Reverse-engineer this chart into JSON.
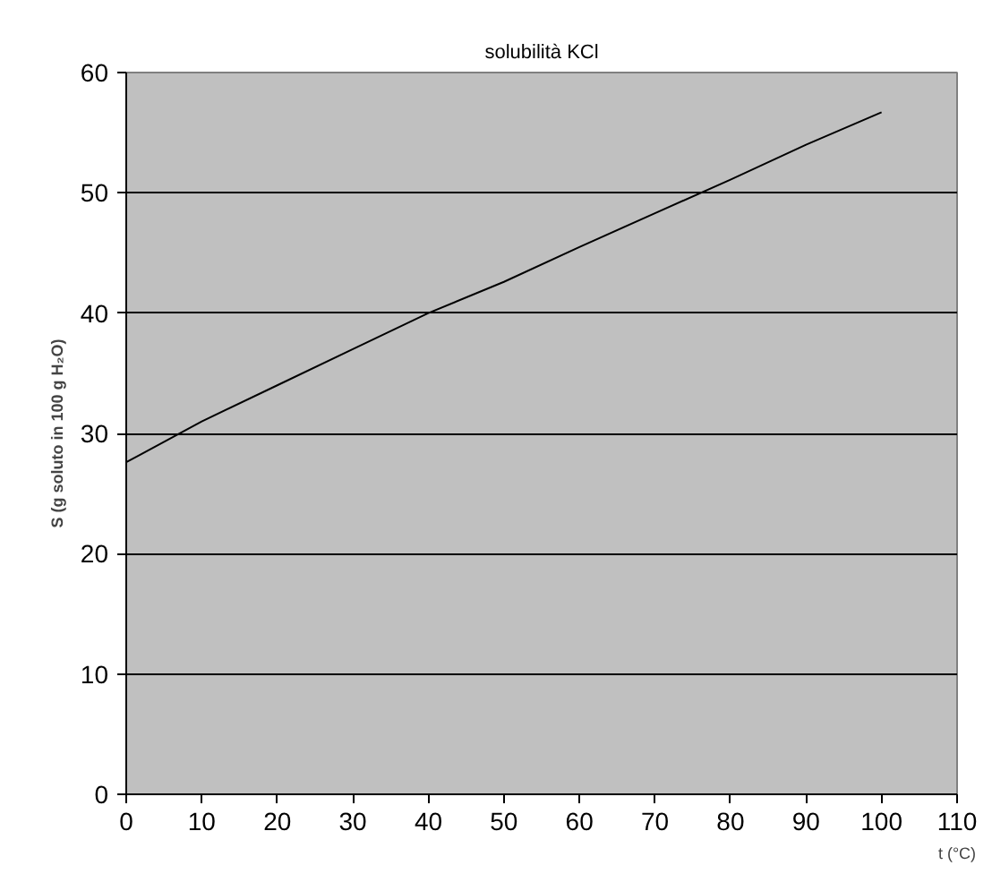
{
  "chart_data": {
    "type": "line",
    "title": "solubilità KCl",
    "xlabel": "t (°C)",
    "ylabel": "S (g soluto in 100 g H₂O)",
    "x": [
      0,
      10,
      20,
      30,
      40,
      50,
      60,
      70,
      80,
      90,
      100
    ],
    "series": [
      {
        "color": "#000000",
        "values": [
          27.6,
          31,
          34,
          37,
          40,
          42.6,
          45.5,
          48.3,
          51.1,
          54,
          56.7
        ]
      }
    ],
    "xlim": [
      0,
      110
    ],
    "xticks": [
      0,
      10,
      20,
      30,
      40,
      50,
      60,
      70,
      80,
      90,
      100,
      110
    ],
    "ylim": [
      0,
      60
    ],
    "yticks": [
      0,
      10,
      20,
      30,
      40,
      50,
      60
    ],
    "grid": "y"
  }
}
